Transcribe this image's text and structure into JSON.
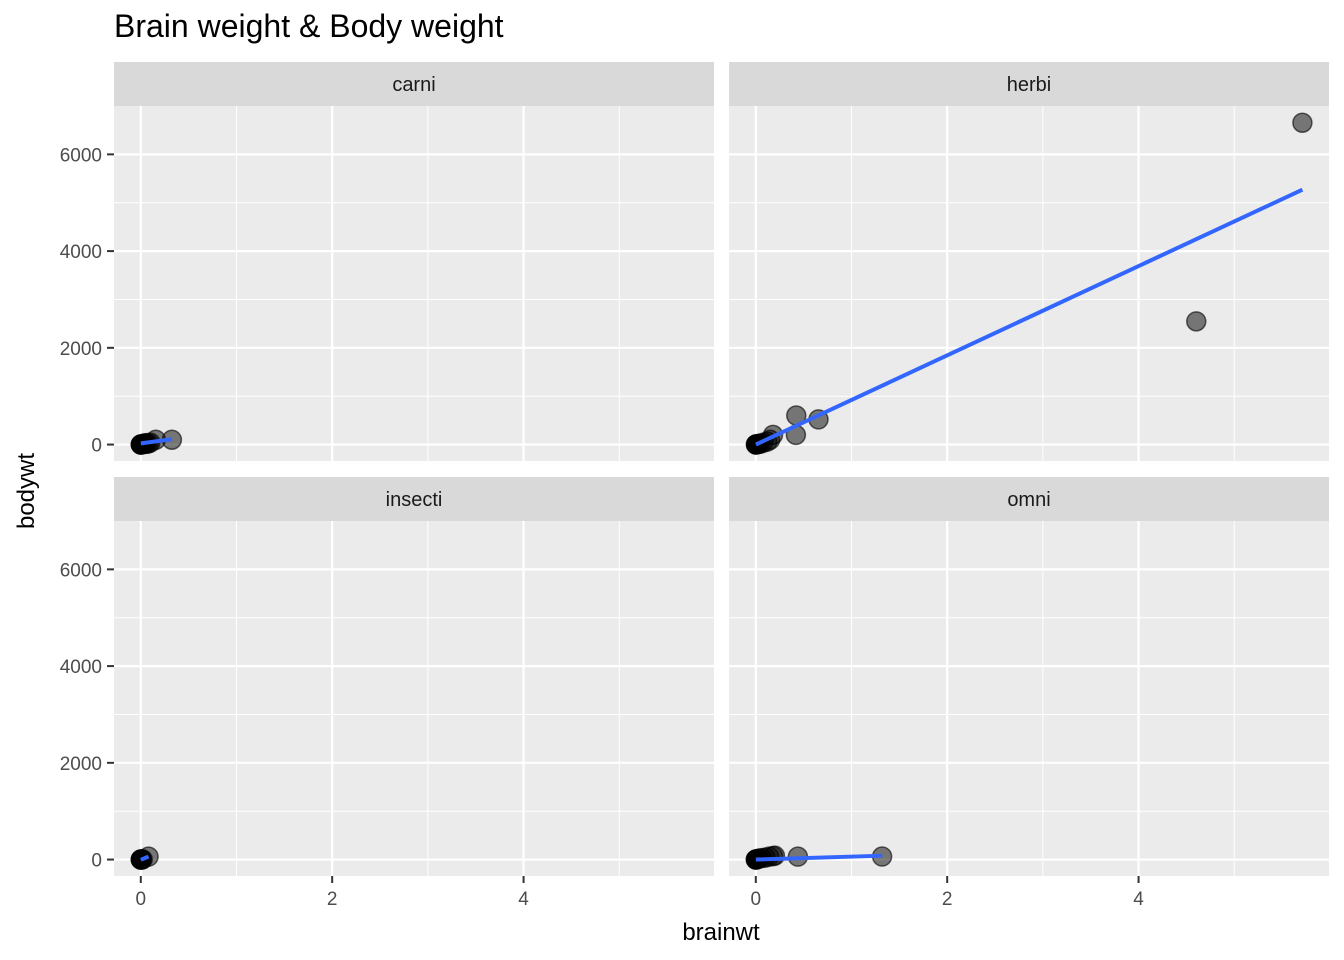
{
  "chart_data": {
    "type": "scatter",
    "title": "Brain weight & Body weight",
    "xlabel": "brainwt",
    "ylabel": "bodywt",
    "xlim": [
      -0.28,
      5.99
    ],
    "ylim": [
      -340,
      7000
    ],
    "x_ticks": [
      0,
      2,
      4
    ],
    "y_ticks": [
      0,
      2000,
      4000,
      6000
    ],
    "grid": true,
    "point_color": "#000000",
    "point_alpha": 0.5,
    "line_color": "#3366FF",
    "strip_fill": "#D9D9D9",
    "panel_fill": "#EBEBEB",
    "facets": [
      {
        "label": "carni",
        "points": [
          [
            0.0003,
            0.5
          ],
          [
            0.0005,
            1
          ],
          [
            0.001,
            1.5
          ],
          [
            0.005,
            3
          ],
          [
            0.01,
            5
          ],
          [
            0.02,
            10
          ],
          [
            0.03,
            15
          ],
          [
            0.04,
            20
          ],
          [
            0.05,
            30
          ],
          [
            0.06,
            15
          ],
          [
            0.08,
            25
          ],
          [
            0.1,
            40
          ],
          [
            0.157,
            100
          ],
          [
            0.325,
            100
          ]
        ],
        "fit": [
          [
            0.0003,
            25
          ],
          [
            0.325,
            110
          ]
        ]
      },
      {
        "label": "herbi",
        "points": [
          [
            0.001,
            1
          ],
          [
            0.003,
            2
          ],
          [
            0.005,
            3
          ],
          [
            0.01,
            5
          ],
          [
            0.02,
            10
          ],
          [
            0.03,
            15
          ],
          [
            0.05,
            20
          ],
          [
            0.08,
            40
          ],
          [
            0.12,
            60
          ],
          [
            0.15,
            100
          ],
          [
            0.18,
            200
          ],
          [
            0.423,
            600
          ],
          [
            0.419,
            200
          ],
          [
            0.655,
            520
          ],
          [
            4.603,
            2547
          ],
          [
            5.712,
            6654
          ]
        ],
        "fit": [
          [
            0.001,
            0
          ],
          [
            5.712,
            5270
          ]
        ]
      },
      {
        "label": "insecti",
        "points": [
          [
            0.0001,
            0.01
          ],
          [
            0.0003,
            0.05
          ],
          [
            0.002,
            0.5
          ],
          [
            0.005,
            1
          ],
          [
            0.01,
            3
          ],
          [
            0.02,
            5
          ],
          [
            0.081,
            60
          ]
        ],
        "fit": [
          [
            0.0001,
            -5
          ],
          [
            0.081,
            62
          ]
        ]
      },
      {
        "label": "omni",
        "points": [
          [
            0.0005,
            0.5
          ],
          [
            0.001,
            1
          ],
          [
            0.003,
            2
          ],
          [
            0.01,
            5
          ],
          [
            0.02,
            10
          ],
          [
            0.03,
            20
          ],
          [
            0.06,
            30
          ],
          [
            0.1,
            40
          ],
          [
            0.14,
            60
          ],
          [
            0.18,
            70
          ],
          [
            0.2,
            80
          ],
          [
            0.44,
            60
          ],
          [
            1.32,
            62
          ]
        ],
        "fit": [
          [
            0.0005,
            0
          ],
          [
            1.32,
            80
          ]
        ]
      }
    ]
  }
}
